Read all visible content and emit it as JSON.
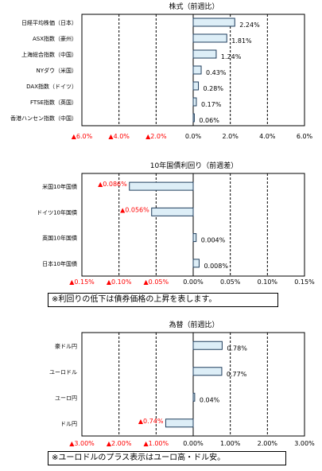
{
  "chart_data": [
    {
      "type": "bar",
      "orientation": "horizontal",
      "title": "株式（前週比）",
      "categories": [
        "日経平均株価（日本）",
        "ASX指数（豪州）",
        "上海総合指数（中国）",
        "NYダウ（米国）",
        "DAX指数（ドイツ）",
        "FTSE指数（英国）",
        "香港ハンセン指数（中国）"
      ],
      "values": [
        2.24,
        1.81,
        1.24,
        0.43,
        0.28,
        0.17,
        0.06
      ],
      "value_labels": [
        "2.24%",
        "1.81%",
        "1.24%",
        "0.43%",
        "0.28%",
        "0.17%",
        "0.06%"
      ],
      "xlim": [
        -6,
        6
      ],
      "ticks": [
        -6,
        -4,
        -2,
        0,
        2,
        4,
        6
      ],
      "tick_labels": [
        "▲6.0%",
        "▲4.0%",
        "▲2.0%",
        "0.0%",
        "2.0%",
        "4.0%",
        "6.0%"
      ],
      "grid": true,
      "note": ""
    },
    {
      "type": "bar",
      "orientation": "horizontal",
      "title": "10年国債利回り（前週差）",
      "categories": [
        "米国10年国債",
        "ドイツ10年国債",
        "英国10年国債",
        "日本10年国債"
      ],
      "values": [
        -0.086,
        -0.056,
        0.004,
        0.008
      ],
      "value_labels": [
        "▲0.086%",
        "▲0.056%",
        "0.004%",
        "0.008%"
      ],
      "xlim": [
        -0.15,
        0.15
      ],
      "ticks": [
        -0.15,
        -0.1,
        -0.05,
        0,
        0.05,
        0.1,
        0.15
      ],
      "tick_labels": [
        "▲0.15%",
        "▲0.10%",
        "▲0.05%",
        "0.00%",
        "0.05%",
        "0.10%",
        "0.15%"
      ],
      "grid": true,
      "note": "※利回りの低下は債券価格の上昇を表します。"
    },
    {
      "type": "bar",
      "orientation": "horizontal",
      "title": "為替（前週比）",
      "categories": [
        "豪ドル円",
        "ユーロドル",
        "ユーロ円",
        "ドル円"
      ],
      "values": [
        0.78,
        0.77,
        0.04,
        -0.74
      ],
      "value_labels": [
        "0.78%",
        "0.77%",
        "0.04%",
        "▲0.74%"
      ],
      "xlim": [
        -3,
        3
      ],
      "ticks": [
        -3,
        -2,
        -1,
        0,
        1,
        2,
        3
      ],
      "tick_labels": [
        "▲3.00%",
        "▲2.00%",
        "▲1.00%",
        "0.00%",
        "1.00%",
        "2.00%",
        "3.00%"
      ],
      "grid": true,
      "note": "※ユーロドルのプラス表示はユーロ高・ドル安。"
    }
  ],
  "colors": {
    "bar_fill": "#ddeef7",
    "bar_stroke": "#1f3d5c",
    "negative_text": "#ff0000",
    "positive_text": "#000000"
  }
}
